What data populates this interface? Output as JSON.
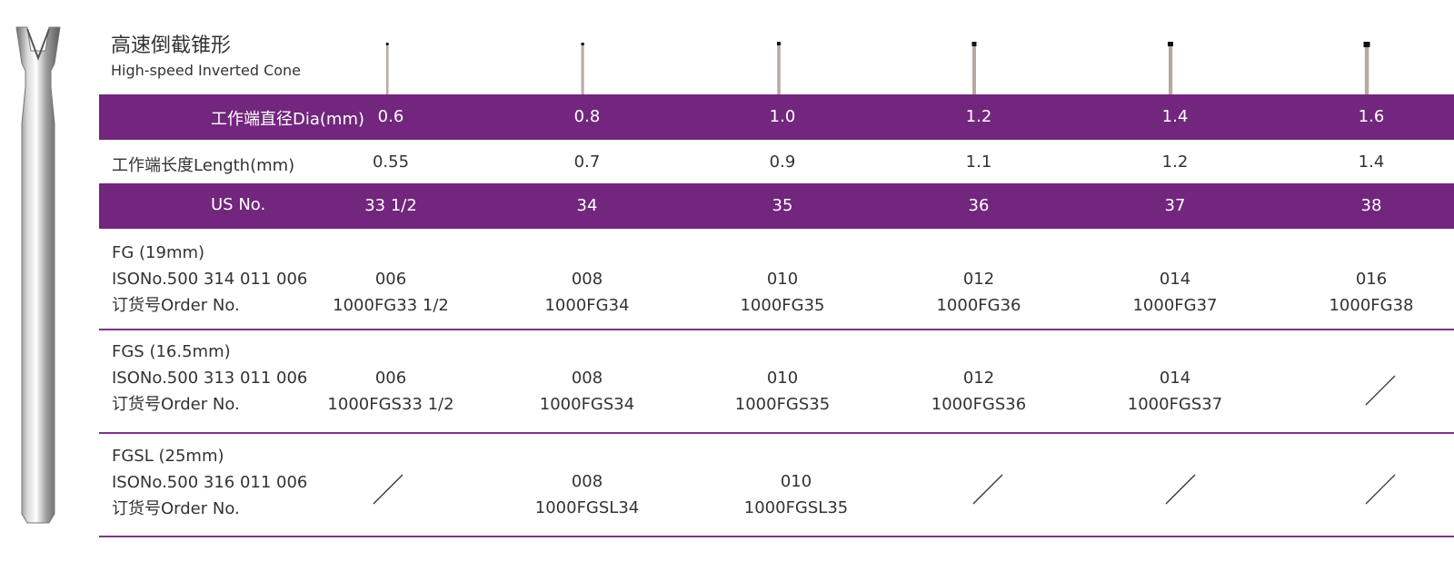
{
  "title": {
    "cn": "高速倒截锥形",
    "en": "High-speed Inverted Cone"
  },
  "colors": {
    "band": "#72267d",
    "rule": "#7a3586",
    "text": "#333333"
  },
  "rows": {
    "dia": {
      "label": "工作端直径Dia(mm)",
      "values": [
        "0.6",
        "0.8",
        "1.0",
        "1.2",
        "1.4",
        "1.6"
      ]
    },
    "length": {
      "label": "工作端长度Length(mm)",
      "values": [
        "0.55",
        "0.7",
        "0.9",
        "1.1",
        "1.2",
        "1.4"
      ]
    },
    "us": {
      "label": "US No.",
      "values": [
        "33 1/2",
        "34",
        "35",
        "36",
        "37",
        "38"
      ]
    },
    "fg": {
      "label": [
        "FG (19mm)",
        "ISONo.500 314 011 006",
        "订货号Order No."
      ],
      "iso": [
        "006",
        "008",
        "010",
        "012",
        "014",
        "016"
      ],
      "order": [
        "1000FG33 1/2",
        "1000FG34",
        "1000FG35",
        "1000FG36",
        "1000FG37",
        "1000FG38"
      ]
    },
    "fgs": {
      "label": [
        "FGS (16.5mm)",
        "ISONo.500 313 011 006",
        "订货号Order No."
      ],
      "iso": [
        "006",
        "008",
        "010",
        "012",
        "014",
        null
      ],
      "order": [
        "1000FGS33 1/2",
        "1000FGS34",
        "1000FGS35",
        "1000FGS36",
        "1000FGS37",
        null
      ]
    },
    "fgsl": {
      "label": [
        "FGSL (25mm)",
        "ISONo.500 316 011 006",
        "订货号Order No."
      ],
      "iso": [
        null,
        "008",
        "010",
        null,
        null,
        null
      ],
      "order": [
        null,
        "1000FGSL34",
        "1000FGSL35",
        null,
        null,
        null
      ]
    }
  }
}
